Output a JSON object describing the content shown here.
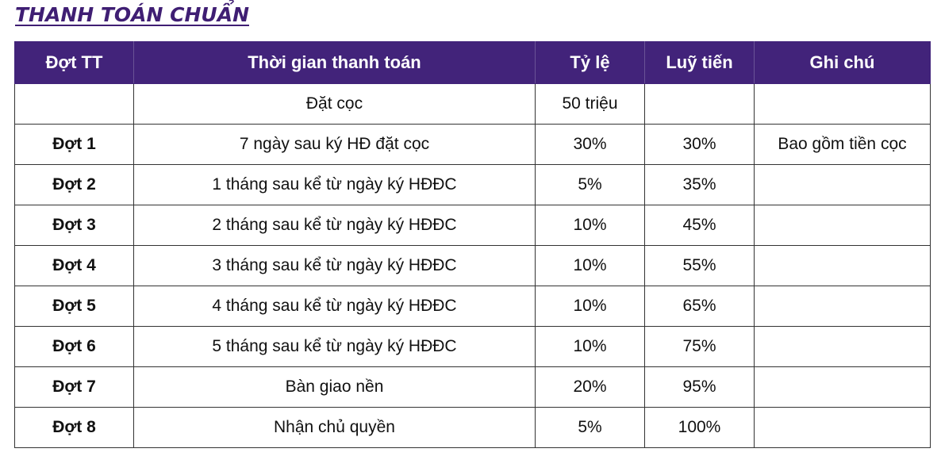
{
  "title": "THANH TOÁN CHUẨN",
  "table": {
    "headers": [
      "Đợt TT",
      "Thời gian thanh toán",
      "Tỷ lệ",
      "Luỹ tiến",
      "Ghi chú"
    ],
    "rows": [
      [
        "",
        "Đặt cọc",
        "50 triệu",
        "",
        ""
      ],
      [
        "Đợt 1",
        "7 ngày sau ký HĐ đặt cọc",
        "30%",
        "30%",
        "Bao gồm tiền cọc"
      ],
      [
        "Đợt 2",
        "1 tháng sau kể từ ngày ký HĐĐC",
        "5%",
        "35%",
        ""
      ],
      [
        "Đợt 3",
        "2 tháng sau kể từ ngày ký HĐĐC",
        "10%",
        "45%",
        ""
      ],
      [
        "Đợt 4",
        "3 tháng sau kể từ ngày ký HĐĐC",
        "10%",
        "55%",
        ""
      ],
      [
        "Đợt 5",
        "4 tháng sau kể từ ngày ký HĐĐC",
        "10%",
        "65%",
        ""
      ],
      [
        "Đợt 6",
        "5 tháng sau kể từ ngày ký HĐĐC",
        "10%",
        "75%",
        ""
      ],
      [
        "Đợt 7",
        "Bàn giao nền",
        "20%",
        "95%",
        ""
      ],
      [
        "Đợt 8",
        "Nhận chủ quyền",
        "5%",
        "100%",
        ""
      ]
    ]
  },
  "colors": {
    "header_bg": "#42237a",
    "title": "#3f1e73",
    "border": "#333333"
  }
}
